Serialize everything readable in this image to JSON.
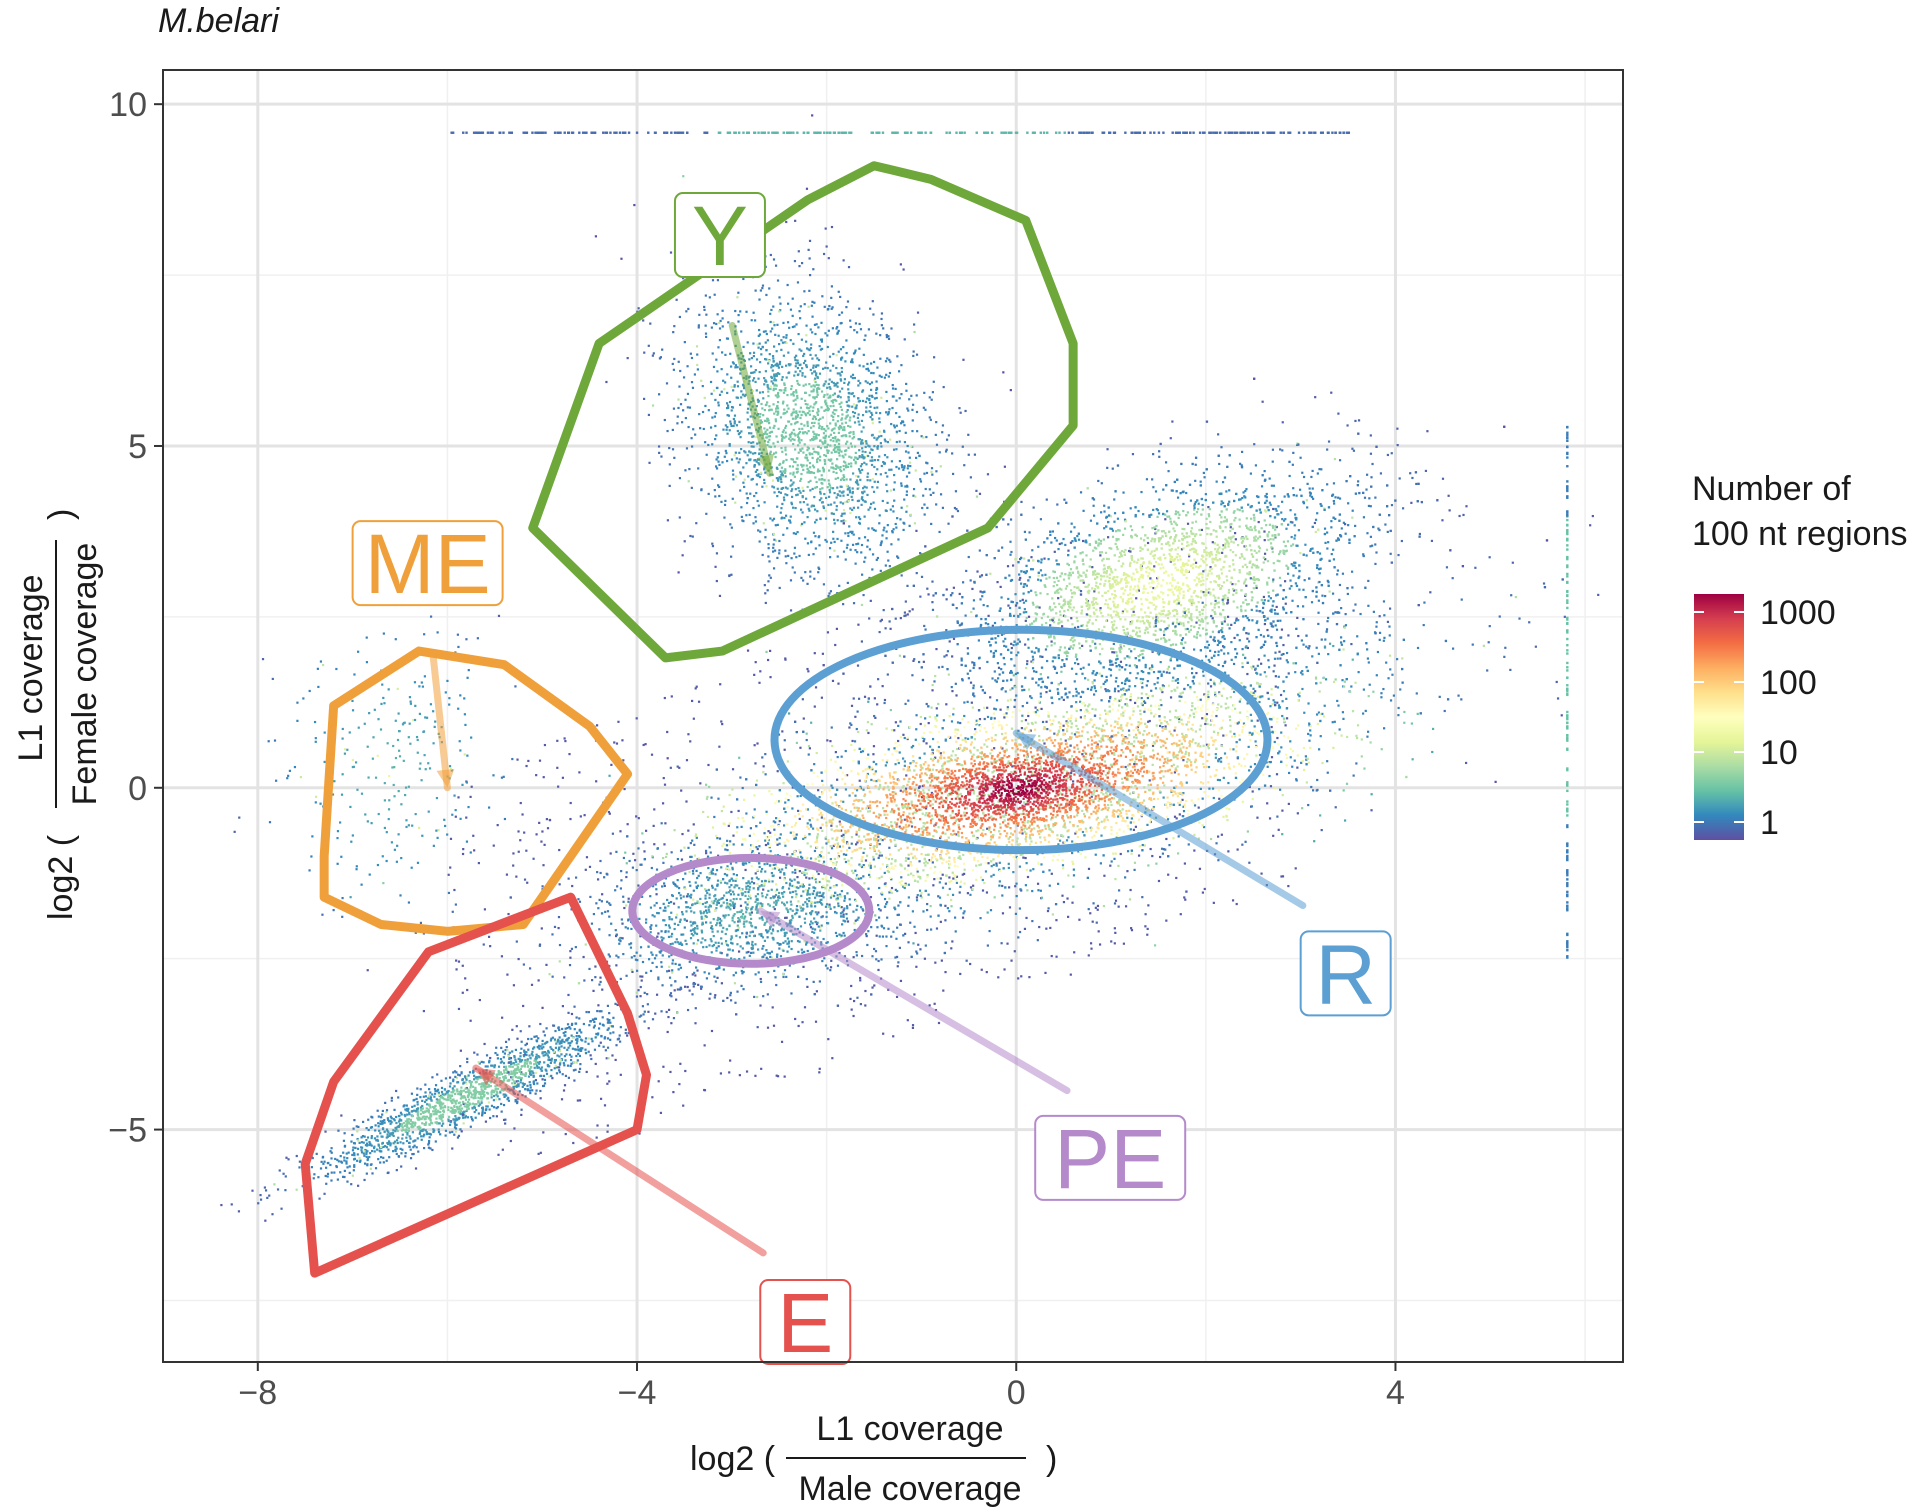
{
  "title": "M.belari",
  "chart_data": {
    "type": "scatter",
    "subtype": "density-hexbin",
    "title": "M.belari",
    "xlabel": {
      "prefix": "log2 (",
      "numerator": "L1 coverage",
      "denominator": "Male coverage",
      "suffix": ")"
    },
    "ylabel": {
      "prefix": "log2 (",
      "numerator": "L1 coverage",
      "denominator": "Female coverage",
      "suffix": ")"
    },
    "xlim": [
      -9.0,
      6.4
    ],
    "ylim": [
      -8.4,
      10.5
    ],
    "xticks": [
      -8,
      -4,
      0,
      4
    ],
    "yticks": [
      -5,
      0,
      5,
      10
    ],
    "grid": true,
    "legend": {
      "title": [
        "Number of",
        "100 nt regions"
      ],
      "position": "right",
      "scale": "log",
      "labels": [
        "1000",
        "100",
        "10",
        "1"
      ],
      "colors": [
        "#9E0142",
        "#D53E4F",
        "#F46D43",
        "#FDAE61",
        "#FEE08B",
        "#FFFFBF",
        "#E6F598",
        "#ABDDA4",
        "#66C2A5",
        "#3288BD",
        "#5E4FA2"
      ]
    },
    "density_clusters": [
      {
        "name": "main",
        "x": 0.0,
        "y": 0.0,
        "peak": 1000
      },
      {
        "name": "upper-ridge",
        "x": 1.5,
        "y": 3.0,
        "peak": 8
      },
      {
        "name": "Y-cluster",
        "x": -2.2,
        "y": 5.2,
        "peak": 5
      },
      {
        "name": "E-streak",
        "x": -5.8,
        "y": -4.5,
        "peak": 4
      },
      {
        "name": "PE-cluster",
        "x": -2.8,
        "y": -1.8,
        "peak": 3
      },
      {
        "name": "ME-cluster",
        "x": -6.6,
        "y": 0.3,
        "peak": 2
      }
    ],
    "top_band": {
      "y": 9.6,
      "x_from": -6.0,
      "x_to": 3.5
    },
    "right_band": {
      "x": 5.8,
      "y_from": -2.5,
      "y_to": 5.3
    },
    "regions": [
      {
        "label": "Y",
        "color": "#6FA83A",
        "polygon": [
          [
            -5.1,
            3.8
          ],
          [
            -3.7,
            1.9
          ],
          [
            -3.1,
            2.0
          ],
          [
            -0.3,
            3.8
          ],
          [
            0.6,
            5.3
          ],
          [
            0.6,
            6.5
          ],
          [
            0.1,
            8.3
          ],
          [
            -0.9,
            8.9
          ],
          [
            -1.5,
            9.1
          ],
          [
            -2.2,
            8.6
          ],
          [
            -4.4,
            6.5
          ]
        ],
        "label_pos": [
          -3.6,
          8.7
        ],
        "arrow_to": [
          -2.6,
          4.6
        ]
      },
      {
        "label": "ME",
        "color": "#F0A03A",
        "polygon": [
          [
            -7.2,
            1.2
          ],
          [
            -6.3,
            2.0
          ],
          [
            -5.4,
            1.8
          ],
          [
            -4.5,
            0.9
          ],
          [
            -4.1,
            0.2
          ],
          [
            -5.2,
            -2.0
          ],
          [
            -6.0,
            -2.1
          ],
          [
            -6.7,
            -2.0
          ],
          [
            -7.3,
            -1.6
          ],
          [
            -7.3,
            -1.0
          ]
        ],
        "label_pos": [
          -7.0,
          3.9
        ],
        "arrow_to": [
          -6.0,
          0.0
        ]
      },
      {
        "label": "E",
        "color": "#E5524E",
        "polygon": [
          [
            -7.4,
            -7.1
          ],
          [
            -4.0,
            -5.0
          ],
          [
            -3.9,
            -4.2
          ],
          [
            -4.1,
            -3.3
          ],
          [
            -4.7,
            -1.6
          ],
          [
            -6.2,
            -2.4
          ],
          [
            -7.2,
            -4.3
          ],
          [
            -7.5,
            -5.5
          ]
        ],
        "label_pos": [
          -2.7,
          -7.2
        ],
        "arrow_to": [
          -5.7,
          -4.1
        ]
      },
      {
        "label": "PE",
        "color": "#B58ACB",
        "ellipse": {
          "cx": -2.8,
          "cy": -1.8,
          "rx": 1.25,
          "ry": 1.25
        },
        "label_pos": [
          0.2,
          -4.8
        ],
        "arrow_to": [
          -2.7,
          -1.8
        ]
      },
      {
        "label": "R",
        "color": "#5B9FD3",
        "ellipse": {
          "cx": 0.05,
          "cy": 0.7,
          "rx": 2.6,
          "ry": 2.6
        },
        "label_pos": [
          3.0,
          -2.1
        ],
        "arrow_to": [
          0.0,
          0.8
        ]
      }
    ]
  }
}
